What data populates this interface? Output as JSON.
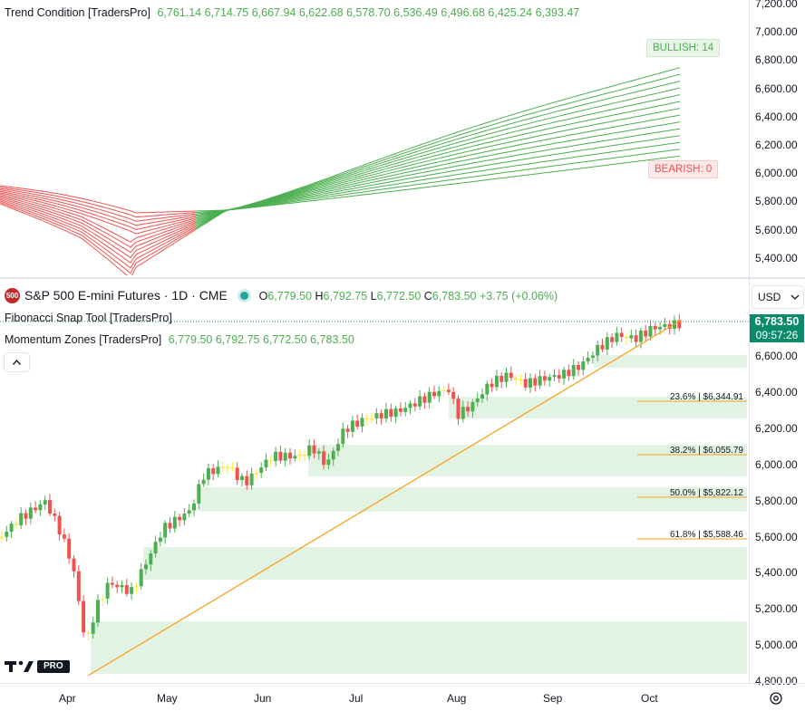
{
  "upper_pane": {
    "indicator_name": "Trend Condition [TradersPro]",
    "values": [
      "6,761.14",
      "6,714.75",
      "6,667.94",
      "6,622.68",
      "6,578.70",
      "6,536.49",
      "6,496.68",
      "6,425.24",
      "6,393.47"
    ],
    "bullish_label": "BULLISH: 14",
    "bearish_label": "BEARISH: 0",
    "axis_ticks": [
      "7,200.00",
      "7,000.00",
      "6,800.00",
      "6,600.00",
      "6,400.00",
      "6,200.00",
      "6,000.00",
      "5,800.00",
      "5,600.00",
      "5,400.00"
    ]
  },
  "symbol": {
    "badge": "500",
    "title": "S&P 500 E-mini Futures · 1D · CME",
    "o_label": "O",
    "o": "6,779.50",
    "h_label": "H",
    "h": "6,792.75",
    "l_label": "L",
    "l": "6,772.50",
    "c_label": "C",
    "c": "6,783.50",
    "change": "+3.75 (+0.06%)"
  },
  "indicators": {
    "fib_tool": "Fibonacci Snap Tool [TradersPro]",
    "momentum": "Momentum Zones [TradersPro]",
    "momentum_values": [
      "6,779.50",
      "6,792.75",
      "6,772.50",
      "6,783.50"
    ]
  },
  "currency": "USD",
  "price_tag": {
    "price": "6,783.50",
    "countdown": "09:57:26"
  },
  "fib_levels": [
    "23.6% | $6,344.91",
    "38.2% | $6,055.79",
    "50.0% | $5,822.12",
    "61.8% | $5,588.46"
  ],
  "lower_axis_ticks": [
    "6,600.00",
    "6,400.00",
    "6,200.00",
    "6,000.00",
    "5,800.00",
    "5,600.00",
    "5,400.00",
    "5,200.00",
    "5,000.00",
    "4,800.00"
  ],
  "time_axis": [
    "Apr",
    "May",
    "Jun",
    "Jul",
    "Aug",
    "Sep",
    "Oct"
  ],
  "logo": {
    "text": "PRO"
  },
  "colors": {
    "bull": "#4caf50",
    "bear": "#ef5350",
    "neutral": "#ffeb3b",
    "zone": "#e3f3e3",
    "trendline": "#f7a21b",
    "tag": "#0b8a6a"
  }
}
